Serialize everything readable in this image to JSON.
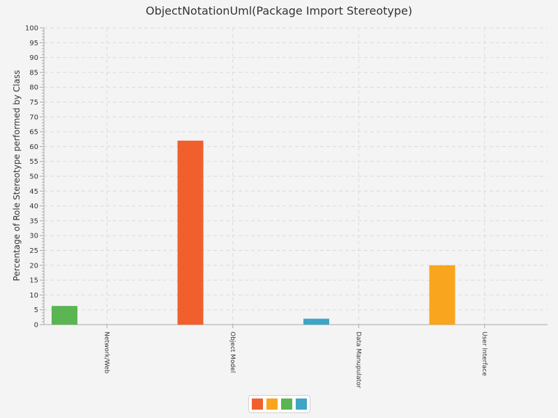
{
  "chart_data": {
    "type": "bar",
    "title": "ObjectNotationUml(Package Import Stereotype)",
    "xlabel": "",
    "ylabel": "Percentage of Role Stereotype performed by Class",
    "categories": [
      "Network/Web",
      "Object Model",
      "Data Manupulator",
      "User Interface"
    ],
    "ylim": [
      0,
      100
    ],
    "y_major_ticks": [
      "0",
      "5",
      "10",
      "15",
      "20",
      "25",
      "30",
      "35",
      "40",
      "45",
      "50",
      "55",
      "60",
      "65",
      "70",
      "75",
      "80",
      "85",
      "90",
      "95",
      "100"
    ],
    "bars": [
      {
        "category": "Network/Web",
        "value": 6.3,
        "color": "#5ab552"
      },
      {
        "category": "Object Model",
        "value": 62,
        "color": "#f1602c"
      },
      {
        "category": "Data Manupulator",
        "value": 2,
        "color": "#3ea5c6"
      },
      {
        "category": "User Interface",
        "value": 20,
        "color": "#f9a51d"
      }
    ],
    "grid": true,
    "legend_position": "bottom-center",
    "legend_colors": [
      "#f1602c",
      "#f9a51d",
      "#5ab552",
      "#3ea5c6"
    ]
  }
}
